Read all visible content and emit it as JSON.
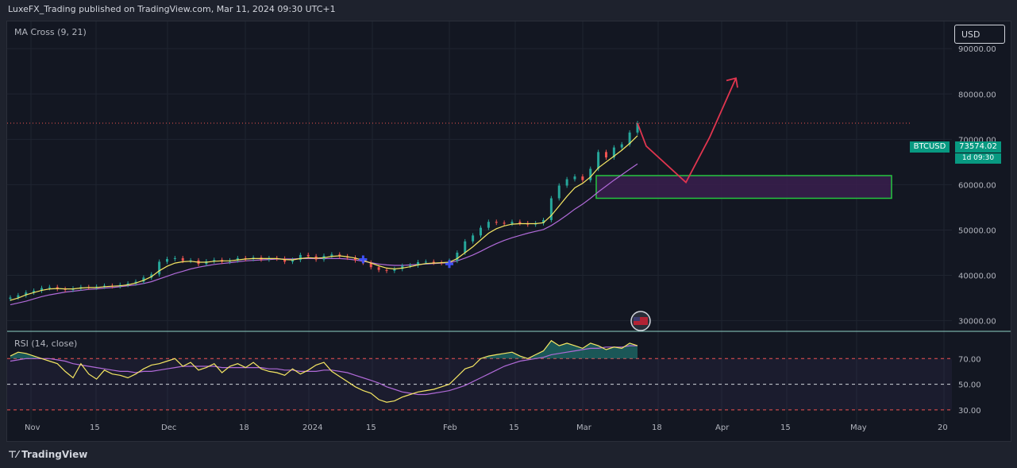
{
  "header": {
    "title": "LuxeFX_Trading published on TradingView.com, Mar 11, 2024 09:30 UTC+1"
  },
  "toolbar": {
    "currency": "USD"
  },
  "indicators": {
    "ma_label": "MA Cross (9, 21)",
    "rsi_label": "RSI (14, close)"
  },
  "price_tags": {
    "symbol": "BTCUSD",
    "price": "73574.02",
    "countdown": "1d 09:30"
  },
  "logo": "TradingView",
  "colors": {
    "background": "#131722",
    "up": "#26a69a",
    "down": "#ef5350",
    "ma_fast": "#f5e663",
    "ma_slow": "#b06ad8",
    "arrow": "#e0354f",
    "zone_border": "#26c640",
    "zone_fill": "#3a1f4d",
    "rsi_line": "#f5e663",
    "rsi_ma": "#b06ad8"
  },
  "chart_data": [
    {
      "type": "candlestick",
      "title": "BTCUSD",
      "y_ticks": [
        "30000.00",
        "40000.00",
        "50000.00",
        "60000.00",
        "70000.00",
        "80000.00",
        "90000.00"
      ],
      "x_ticks": [
        "Nov",
        "15",
        "Dec",
        "18",
        "2024",
        "15",
        "Feb",
        "15",
        "Mar",
        "18",
        "Apr",
        "15",
        "May",
        "20"
      ],
      "ylim": [
        28000,
        96000
      ],
      "last_price": 73574.02,
      "close_series": [
        35100,
        35600,
        36200,
        36600,
        37200,
        37400,
        37000,
        36800,
        37100,
        37400,
        37300,
        37500,
        37700,
        37600,
        37900,
        38200,
        38600,
        39500,
        40200,
        43000,
        43600,
        43800,
        43200,
        43300,
        42500,
        43100,
        43400,
        43000,
        43300,
        43800,
        43600,
        43900,
        43500,
        43800,
        43700,
        43000,
        43400,
        44500,
        44200,
        43500,
        44300,
        44600,
        44200,
        43900,
        43300,
        42800,
        41800,
        41200,
        41000,
        41400,
        42100,
        42200,
        42900,
        43000,
        42800,
        42700,
        43200,
        45000,
        47500,
        48800,
        50500,
        51800,
        51600,
        51400,
        51800,
        51500,
        51200,
        51500,
        52200,
        57000,
        59800,
        61200,
        61800,
        61000,
        63500,
        67200,
        66000,
        68200,
        68900,
        71500,
        73574
      ],
      "ma_fast": [
        34500,
        35000,
        35700,
        36200,
        36700,
        37000,
        37100,
        37000,
        37000,
        37200,
        37300,
        37300,
        37500,
        37600,
        37700,
        37900,
        38300,
        38900,
        39700,
        41000,
        42000,
        42700,
        43000,
        43100,
        42900,
        42900,
        43100,
        43200,
        43200,
        43400,
        43600,
        43700,
        43700,
        43700,
        43700,
        43500,
        43400,
        43700,
        43900,
        43800,
        43900,
        44200,
        44300,
        44100,
        43800,
        43300,
        42700,
        42100,
        41600,
        41400,
        41600,
        41900,
        42300,
        42600,
        42700,
        42800,
        42900,
        43700,
        45000,
        46300,
        47800,
        49300,
        50300,
        50900,
        51300,
        51400,
        51400,
        51400,
        51600,
        53200,
        55300,
        57400,
        59300,
        60300,
        61700,
        63700,
        65000,
        66300,
        67600,
        69100,
        70800
      ],
      "ma_slow": [
        33500,
        33900,
        34300,
        34800,
        35300,
        35700,
        36000,
        36300,
        36500,
        36700,
        36900,
        37000,
        37200,
        37300,
        37500,
        37700,
        37900,
        38200,
        38600,
        39200,
        39800,
        40400,
        40900,
        41400,
        41800,
        42100,
        42400,
        42600,
        42800,
        43000,
        43200,
        43300,
        43400,
        43500,
        43600,
        43600,
        43600,
        43700,
        43700,
        43700,
        43700,
        43700,
        43700,
        43600,
        43400,
        43100,
        42800,
        42500,
        42300,
        42200,
        42200,
        42300,
        42400,
        42500,
        42600,
        42700,
        42800,
        43200,
        43800,
        44500,
        45300,
        46200,
        47000,
        47700,
        48300,
        48800,
        49300,
        49700,
        50100,
        51000,
        52100,
        53300,
        54600,
        55700,
        57000,
        58400,
        59700,
        61000,
        62200,
        63400,
        64600
      ],
      "ma_cross_markers": [
        {
          "label": "cross-down",
          "value": 43500
        },
        {
          "label": "cross-up",
          "value": 42500
        }
      ],
      "projection": [
        73574,
        68500,
        60500,
        70500,
        83500
      ],
      "zone": {
        "from": 57000,
        "to": 62000
      }
    },
    {
      "type": "line",
      "title": "RSI (14, close)",
      "y_ticks": [
        "70.00",
        "50.00",
        "30.00"
      ],
      "ylim": [
        20,
        90
      ],
      "levels": [
        70,
        50,
        30
      ],
      "rsi": [
        72,
        75,
        74,
        72,
        70,
        68,
        66,
        60,
        55,
        66,
        58,
        54,
        61,
        58,
        57,
        55,
        58,
        62,
        65,
        66,
        68,
        70,
        64,
        67,
        61,
        63,
        66,
        59,
        64,
        66,
        63,
        67,
        62,
        60,
        59,
        57,
        62,
        58,
        61,
        65,
        67,
        60,
        56,
        52,
        48,
        45,
        43,
        38,
        36,
        37,
        40,
        42,
        44,
        45,
        46,
        48,
        50,
        56,
        62,
        64,
        70,
        72,
        73,
        74,
        75,
        72,
        70,
        73,
        76,
        84,
        80,
        82,
        80,
        78,
        82,
        80,
        77,
        79,
        78,
        82,
        80
      ],
      "rsi_ma": [
        68,
        69,
        70,
        70,
        70,
        70,
        69,
        68,
        66,
        65,
        64,
        63,
        62,
        61,
        60,
        60,
        59,
        60,
        60,
        61,
        62,
        63,
        64,
        64,
        64,
        64,
        64,
        63,
        63,
        63,
        63,
        63,
        63,
        62,
        62,
        61,
        61,
        60,
        60,
        60,
        61,
        61,
        60,
        59,
        57,
        55,
        53,
        51,
        48,
        46,
        44,
        43,
        42,
        42,
        43,
        44,
        45,
        47,
        49,
        52,
        55,
        58,
        61,
        64,
        66,
        68,
        69,
        70,
        71,
        73,
        74,
        75,
        76,
        77,
        78,
        78,
        79,
        79,
        79,
        80,
        80
      ]
    }
  ]
}
